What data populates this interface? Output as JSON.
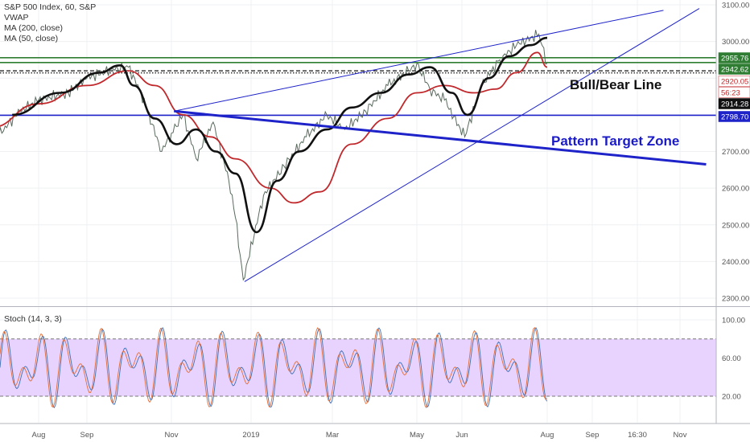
{
  "legend": {
    "title": "S&P 500 Index, 60, S&P",
    "vwap": "VWAP",
    "ma200": "MA (200, close)",
    "ma50": "MA (50, close)"
  },
  "stoch_label": "Stoch (14, 3, 3)",
  "annotations": {
    "bull_bear": "Bull/Bear Line",
    "target_zone": "Pattern Target Zone"
  },
  "colors": {
    "price": "#5a6b5e",
    "vwap": "#111111",
    "ma_red": "#c0282c",
    "trend_blue": "#1d22c9",
    "green_lines": "#2e7d32",
    "stoch_fill": "#e8d3ff",
    "stoch_k": "#3f6fb5",
    "stoch_d": "#e4703a",
    "blue_text": "#1a1ac6"
  },
  "chart_data": [
    {
      "type": "line",
      "title": "S&P 500 Index, 60, S&P",
      "y_axis": {
        "ticks": [
          "3100.00",
          "3000.00",
          "2900.00",
          "2800.00",
          "2700.00",
          "2600.00",
          "2500.00",
          "2400.00",
          "2300.00"
        ],
        "tick_values": [
          3100,
          3000,
          2900,
          2800,
          2700,
          2600,
          2500,
          2400,
          2300
        ],
        "range": [
          2290,
          3110
        ]
      },
      "x_axis": {
        "ticks": [
          "Aug",
          "Sep",
          "Nov",
          "2019",
          "Mar",
          "May",
          "Jun",
          "Aug",
          "Sep",
          "16:30",
          "Nov"
        ],
        "tick_dates": [
          "2018-08-01",
          "2018-09-01",
          "2018-11-01",
          "2019-01-01",
          "2019-03-01",
          "2019-05-01",
          "2019-06-01",
          "2019-08-01",
          "2019-09-01",
          "2019-10-01",
          "2019-11-01"
        ],
        "range": [
          "2018-07-01",
          "2019-11-30"
        ]
      },
      "series": [
        {
          "name": "",
          "role": "price",
          "x": [
            "2018-07-01",
            "2018-07-20",
            "2018-08-01",
            "2018-08-20",
            "2018-09-01",
            "2018-09-20",
            "2018-10-01",
            "2018-10-10",
            "2018-10-25",
            "2018-11-01",
            "2018-11-10",
            "2018-11-20",
            "2018-12-03",
            "2018-12-15",
            "2018-12-20",
            "2018-12-26",
            "2019-01-10",
            "2019-01-25",
            "2019-02-10",
            "2019-02-25",
            "2019-03-10",
            "2019-03-25",
            "2019-04-10",
            "2019-04-25",
            "2019-05-01",
            "2019-05-10",
            "2019-05-20",
            "2019-06-03",
            "2019-06-15",
            "2019-06-28",
            "2019-07-10",
            "2019-07-26",
            "2019-08-01"
          ],
          "values": [
            2720,
            2810,
            2840,
            2860,
            2900,
            2925,
            2930,
            2860,
            2700,
            2750,
            2800,
            2680,
            2780,
            2620,
            2520,
            2350,
            2580,
            2660,
            2740,
            2800,
            2760,
            2810,
            2880,
            2920,
            2940,
            2870,
            2840,
            2740,
            2880,
            2950,
            2990,
            3020,
            2940
          ]
        },
        {
          "name": "VWAP",
          "x": [
            "2018-07-15",
            "2018-08-15",
            "2018-09-10",
            "2018-09-25",
            "2018-10-05",
            "2018-10-20",
            "2018-11-05",
            "2018-11-20",
            "2018-12-05",
            "2018-12-20",
            "2019-01-05",
            "2019-01-20",
            "2019-02-05",
            "2019-02-25",
            "2019-03-15",
            "2019-04-05",
            "2019-04-25",
            "2019-05-10",
            "2019-05-25",
            "2019-06-05",
            "2019-06-20",
            "2019-07-05",
            "2019-07-20",
            "2019-08-01"
          ],
          "values": [
            2800,
            2860,
            2915,
            2935,
            2880,
            2790,
            2720,
            2760,
            2700,
            2640,
            2480,
            2620,
            2700,
            2760,
            2820,
            2860,
            2910,
            2930,
            2860,
            2800,
            2900,
            2960,
            2990,
            3010
          ]
        },
        {
          "name": "MA (200, close)",
          "x": [
            "2018-07-01",
            "2018-08-01",
            "2018-09-01",
            "2018-10-01",
            "2018-10-20",
            "2018-11-10",
            "2018-12-01",
            "2018-12-20",
            "2019-01-15",
            "2019-02-01",
            "2019-02-20",
            "2019-03-15",
            "2019-04-10",
            "2019-05-01",
            "2019-05-20",
            "2019-06-10",
            "2019-06-25",
            "2019-07-10",
            "2019-07-25",
            "2019-08-01"
          ],
          "values": [
            2765,
            2830,
            2880,
            2920,
            2880,
            2800,
            2740,
            2680,
            2600,
            2560,
            2590,
            2720,
            2790,
            2860,
            2880,
            2860,
            2870,
            2915,
            2970,
            2930
          ]
        }
      ]
    },
    {
      "type": "line",
      "title": "Stoch (14, 3, 3)",
      "y_axis": {
        "ticks": [
          "100.00",
          "60.00",
          "20.00"
        ],
        "tick_values": [
          100,
          60,
          20
        ],
        "range": [
          0,
          105
        ],
        "band": [
          20,
          80
        ]
      },
      "series": [
        {
          "name": "",
          "role": "%K"
        },
        {
          "name": "",
          "role": "%D"
        }
      ]
    }
  ],
  "price_labels": [
    {
      "value": 2955.76,
      "text": "2955.76",
      "bg": "#2e7d32",
      "fg": "#ffffff"
    },
    {
      "value": 2942.62,
      "text": "2942.62",
      "bg": "#2e7d32",
      "fg": "#ffffff"
    },
    {
      "value": 2920.05,
      "text": "2920.05",
      "bg": "#ffffff",
      "fg": "#c0282c"
    },
    {
      "value": 2905.0,
      "text": "56:23",
      "bg": "#ffffff",
      "fg": "#c0282c"
    },
    {
      "value": 2914.28,
      "text": "2914.28",
      "bg": "#111111",
      "fg": "#ffffff"
    },
    {
      "value": 2798.7,
      "text": "2798.70",
      "bg": "#1d22c9",
      "fg": "#ffffff"
    }
  ],
  "horizontal_levels": [
    {
      "value": 2955.76,
      "color": "#2e7d32",
      "style": "solid"
    },
    {
      "value": 2942.62,
      "color": "#2e7d32",
      "style": "solid"
    },
    {
      "value": 2920.05,
      "color": "#111111",
      "style": "dashed"
    },
    {
      "value": 2914.28,
      "color": "#111111",
      "style": "dotted"
    },
    {
      "value": 2798.7,
      "color": "#1d22c9",
      "style": "solid"
    }
  ],
  "trend_lines": [
    {
      "from": [
        "2018-11-03",
        2810
      ],
      "to": [
        "2019-10-20",
        3085
      ],
      "weight": "thin"
    },
    {
      "from": [
        "2018-12-27",
        2345
      ],
      "to": [
        "2019-11-15",
        3090
      ],
      "weight": "thin"
    },
    {
      "from": [
        "2018-11-03",
        2810
      ],
      "to": [
        "2019-11-20",
        2665
      ],
      "weight": "thick"
    }
  ]
}
